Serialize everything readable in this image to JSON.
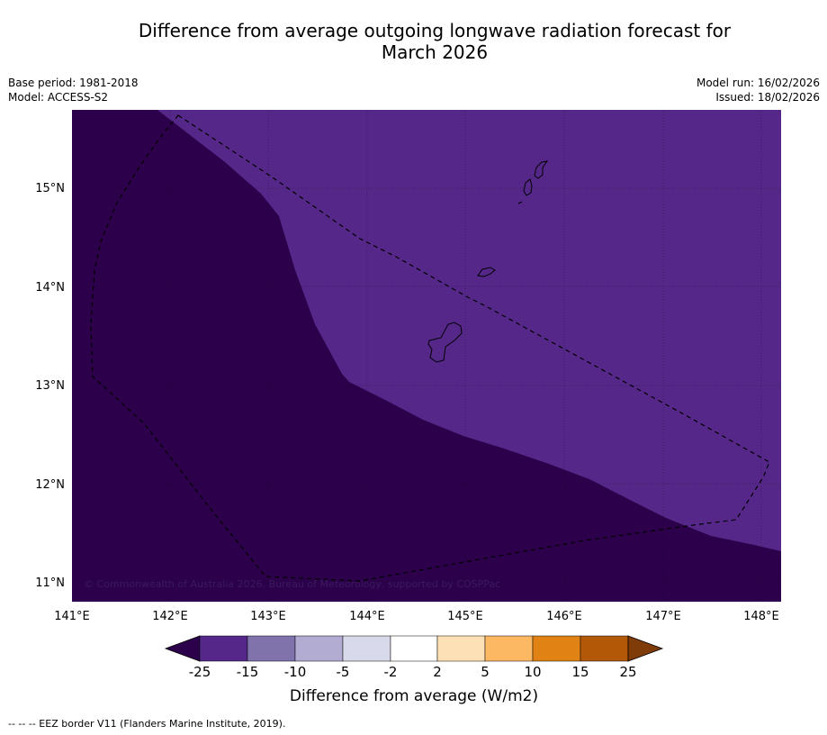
{
  "title": {
    "line1": "Difference from average outgoing longwave radiation forecast for",
    "line2": "March 2026"
  },
  "meta": {
    "base_period": "Base period: 1981-2018",
    "model": "Model: ACCESS-S2",
    "model_run": "Model run: 16/02/2026",
    "issued": "Issued: 18/02/2026"
  },
  "map": {
    "lon_ticks": [
      "141°E",
      "142°E",
      "143°E",
      "144°E",
      "145°E",
      "146°E",
      "147°E",
      "148°E"
    ],
    "lat_ticks": [
      "15°N",
      "14°N",
      "13°N",
      "12°N",
      "11°N"
    ],
    "copyright": "© Commonwealth of Australia 2026, Bureau of Meteorology, supported by COSPPac",
    "colors": {
      "dark_purple": "#2d004b",
      "mid_purple": "#542788",
      "boundary": "#000000"
    }
  },
  "colorbar": {
    "ticks": [
      "-25",
      "-15",
      "-10",
      "-5",
      "-2",
      "2",
      "5",
      "10",
      "15",
      "25"
    ],
    "colors": [
      "#2d004b",
      "#542788",
      "#8073ac",
      "#b2abd2",
      "#d8daeb",
      "#ffffff",
      "#fee0b6",
      "#fdb863",
      "#e08214",
      "#b35806",
      "#7f3b08"
    ],
    "label": "Difference from average (W/m2)"
  },
  "footnote": "--  --  -- EEZ border V11 (Flanders Marine Institute, 2019)."
}
